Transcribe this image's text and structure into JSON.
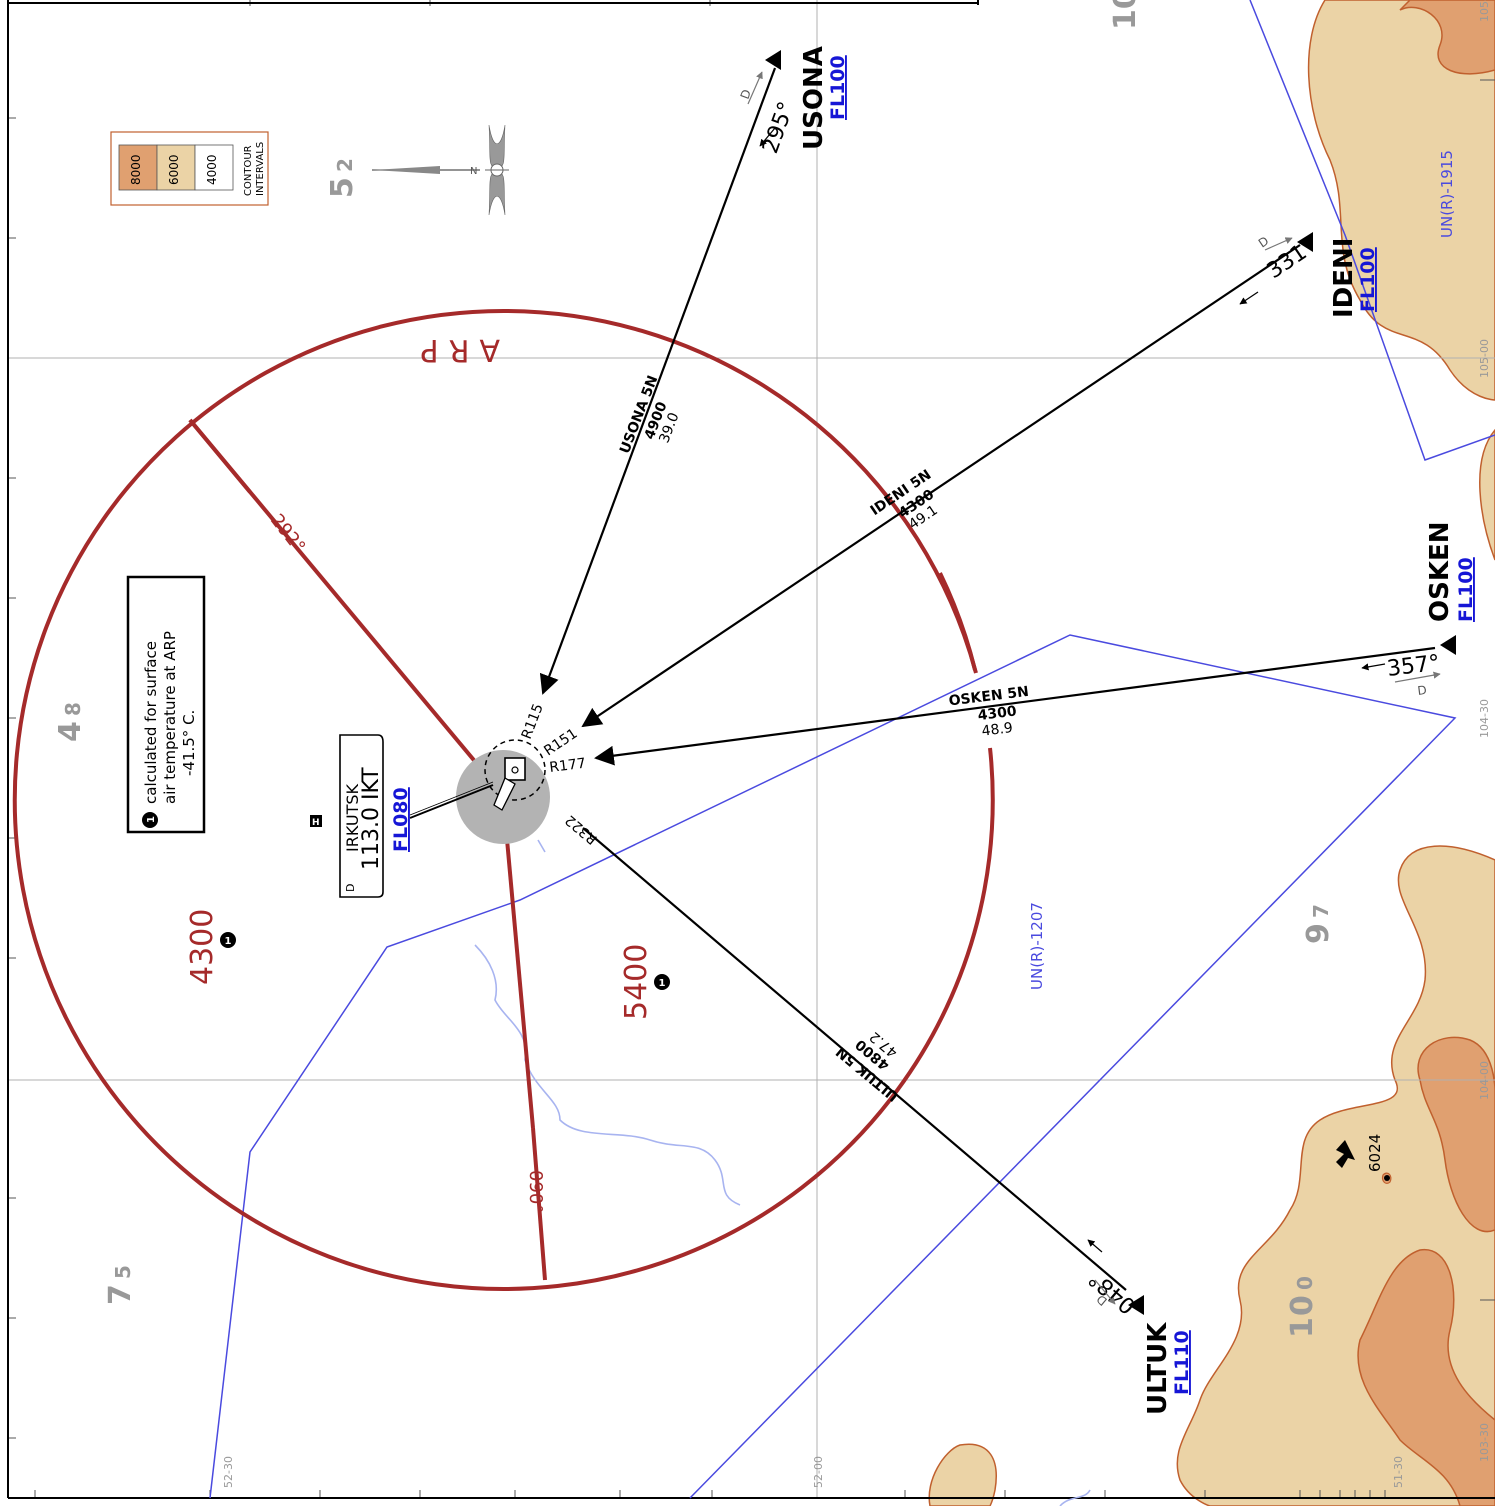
{
  "colors": {
    "terrain_4000": "#ebd3a6",
    "terrain_6000": "#e0a070",
    "terrain_outline": "#c0602e",
    "msa": "#a52a2a",
    "airspace": "#4a4adf",
    "fl": "#1616d6",
    "gray": "#999999",
    "grid": "#b0b0b0"
  },
  "legend": {
    "intervals": [
      "8000",
      "6000",
      "4000"
    ],
    "title_line1": "CONTOUR",
    "title_line2": "INTERVALS"
  },
  "north_arrow": {
    "label": "N"
  },
  "note": {
    "symbol": "1",
    "line1": "calculated for surface",
    "line2": "air temperature at ARP",
    "line3": "-41.5° C."
  },
  "airport": {
    "heli": "H",
    "name": "IRKUTSK",
    "freq_line": "113.0 IKT",
    "d": "D",
    "fl": "FL080"
  },
  "msa": {
    "arp_label": "ARP",
    "bearing_top": "292°",
    "bearing_bottom": "090°",
    "altitude_1": "4300",
    "altitude_2": "5400",
    "alt_note": "1"
  },
  "grid_numbers": {
    "n52": [
      "5",
      "2"
    ],
    "n48": [
      "4",
      "8"
    ],
    "n75": [
      "7",
      "5"
    ],
    "n97": [
      "9",
      "7"
    ],
    "n100": [
      "1",
      "0",
      "0"
    ],
    "n10_top": "10"
  },
  "grid_labels": {
    "lat_52_30": "52-30",
    "lat_52_00": "52-00",
    "lat_51_30": "51-30",
    "lon_103_30": "103-30",
    "lon_104_00": "104-00",
    "lon_104_30": "104-30",
    "lon_105_00": "105-00",
    "lon_105_edge": "105-"
  },
  "airspace": {
    "a1": "UN(R)-1207",
    "a2": "UN(R)-1915"
  },
  "elevation": {
    "value": "6024"
  },
  "radials": {
    "r115": "R115",
    "r151": "R151",
    "r177": "R177",
    "r322": "R322"
  },
  "routes": [
    {
      "fix": "USONA",
      "fl": "FL100",
      "name": "USONA 5N",
      "alt": "4900",
      "dist": "39.0",
      "course": "295°",
      "d": "D"
    },
    {
      "fix": "IDENI",
      "fl": "FL100",
      "name": "IDENI 5N",
      "alt": "4300",
      "dist": "49.1",
      "course": "331°",
      "d": "D"
    },
    {
      "fix": "OSKEN",
      "fl": "FL100",
      "name": "OSKEN 5N",
      "alt": "4300",
      "dist": "48.9",
      "course": "357°",
      "d": "D"
    },
    {
      "fix": "ULTUK",
      "fl": "FL110",
      "name": "ULTUK 5N",
      "alt": "4800",
      "dist": "47.2",
      "course": "048°",
      "d": "D"
    }
  ]
}
